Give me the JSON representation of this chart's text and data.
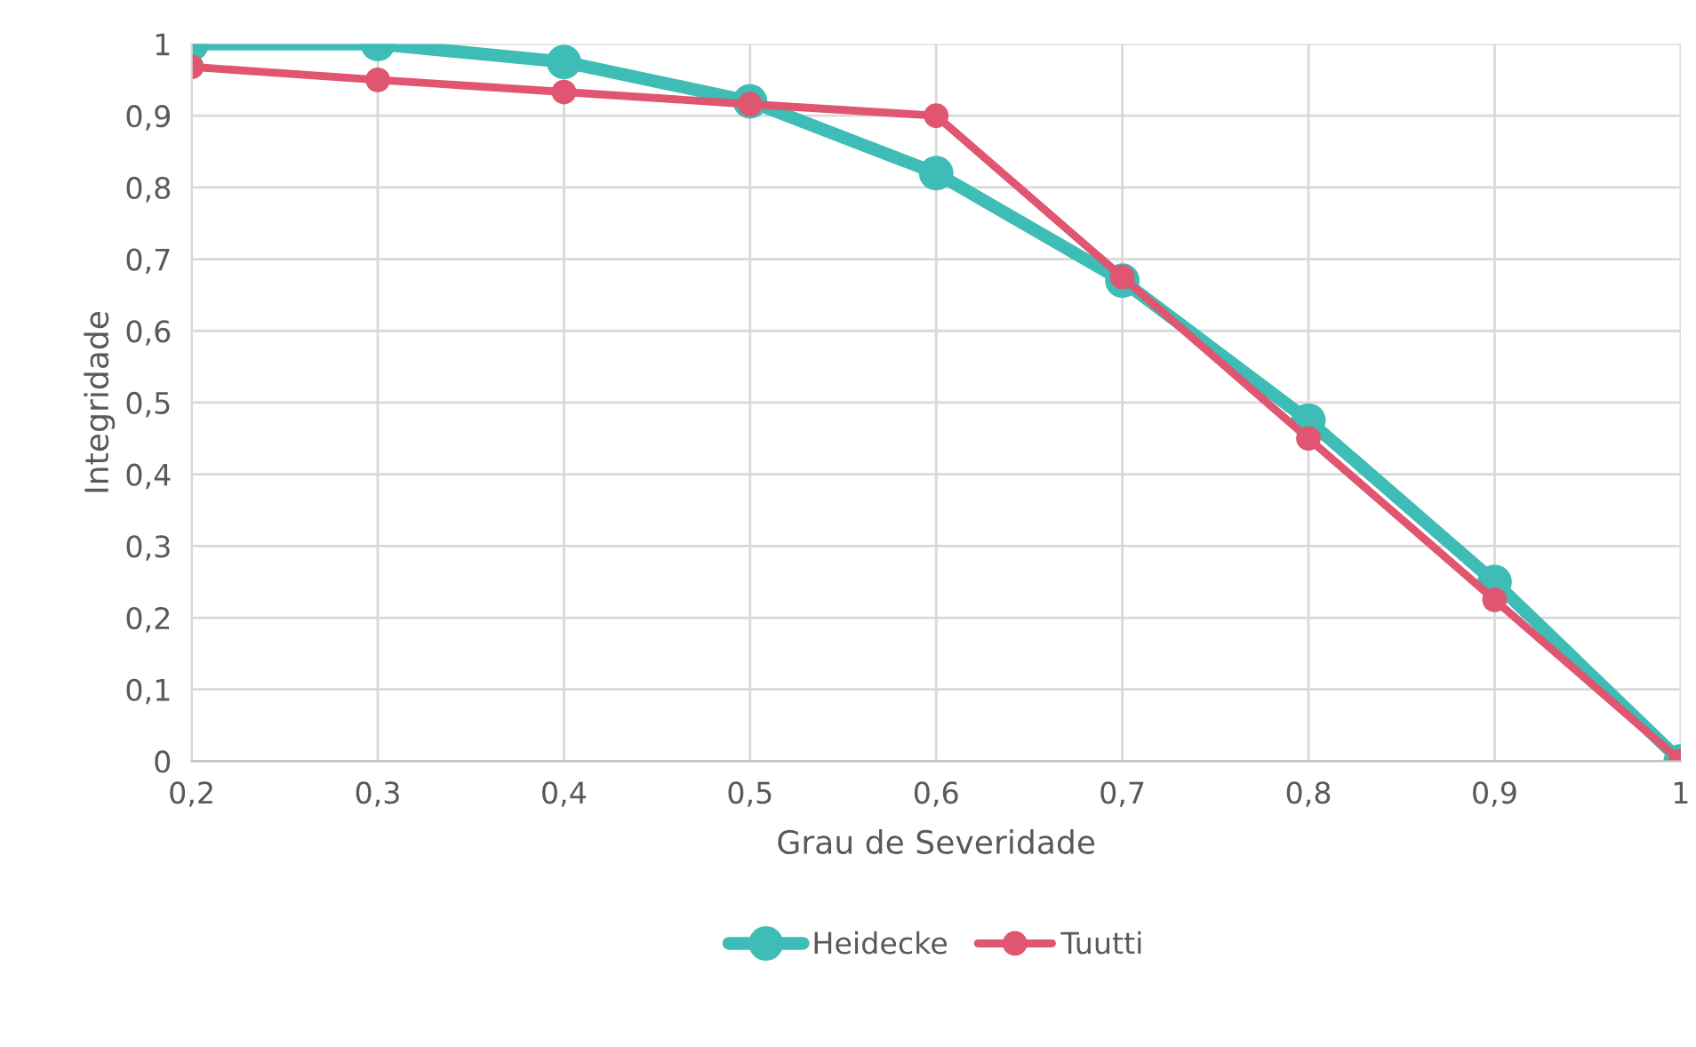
{
  "chart_data": {
    "type": "line",
    "xlabel": "Grau de Severidade",
    "ylabel": "Integridade",
    "categories": [
      "0,2",
      "0,3",
      "0,4",
      "0,5",
      "0,6",
      "0,7",
      "0,8",
      "0,9",
      "1"
    ],
    "series": [
      {
        "name": "Heidecke",
        "color": "#3dbdb5",
        "values": [
          1.0,
          1.0,
          0.975,
          0.92,
          0.82,
          0.67,
          0.475,
          0.25,
          0.0
        ]
      },
      {
        "name": "Tuutti",
        "color": "#e05570",
        "values": [
          0.968,
          0.95,
          0.933,
          0.916,
          0.9,
          0.675,
          0.45,
          0.225,
          0.0
        ]
      }
    ],
    "ylim": [
      0,
      1
    ],
    "yticks": [
      0,
      {
        "value": 0.1,
        "label": "0,1"
      },
      {
        "value": 0.2,
        "label": "0,2"
      },
      {
        "value": 0.3,
        "label": "0,3"
      },
      {
        "value": 0.4,
        "label": "0,4"
      },
      {
        "value": 0.5,
        "label": "0,5"
      },
      {
        "value": 0.6,
        "label": "0,6"
      },
      {
        "value": 0.7,
        "label": "0,7"
      },
      {
        "value": 0.8,
        "label": "0,8"
      },
      {
        "value": 0.9,
        "label": "0,9"
      },
      1
    ],
    "grid": true,
    "legend": "bottom",
    "marker": "circle",
    "line_style": "solid"
  }
}
